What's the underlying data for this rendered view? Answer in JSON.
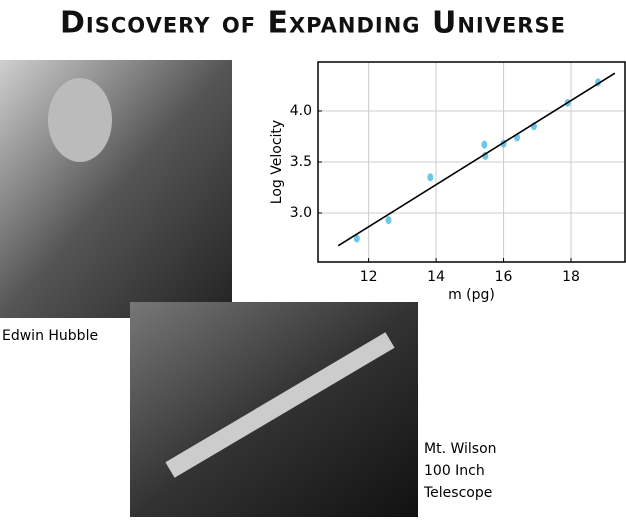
{
  "title": "Discovery of Expanding Universe",
  "chart_data": {
    "type": "scatter",
    "x_label": "m (pg)",
    "y_label": "Log Velocity",
    "x": [
      11.65,
      12.59,
      13.83,
      15.43,
      15.46,
      16.0,
      16.4,
      16.9,
      17.9,
      18.8
    ],
    "values": [
      2.75,
      2.93,
      3.35,
      3.67,
      3.56,
      3.68,
      3.74,
      3.85,
      4.08,
      4.28
    ],
    "color": "#6ec6e8",
    "fit": {
      "x": [
        11.1,
        19.3
      ],
      "y": [
        2.68,
        4.37
      ],
      "color": "#000000"
    },
    "xlim": [
      10.5,
      19.6
    ],
    "ylim": [
      2.52,
      4.48
    ],
    "xticks": [
      12,
      14,
      16,
      18
    ],
    "yticks": [
      {
        "value": 3,
        "label": "3.0"
      },
      3.5,
      {
        "value": 4,
        "label": "4.0"
      }
    ],
    "grid": true
  },
  "captions": {
    "hubble": "Edwin Hubble",
    "telescope": [
      "Mt. Wilson",
      "100 Inch",
      "Telescope"
    ]
  }
}
